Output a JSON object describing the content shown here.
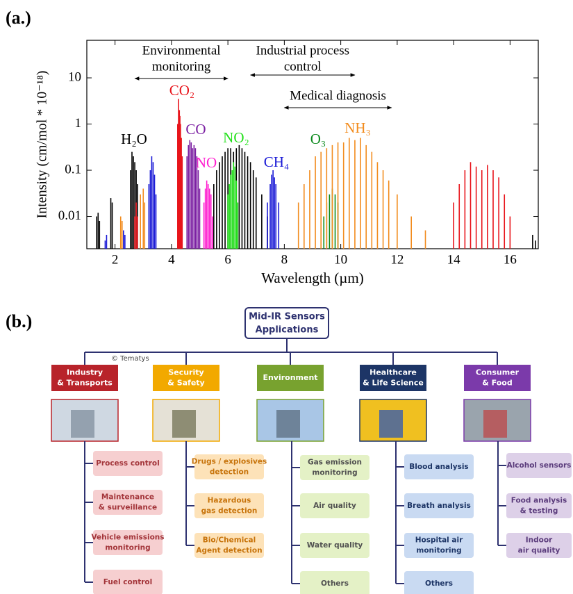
{
  "panel_a_label": "(a.)",
  "panel_b_label": "(b.)",
  "chart_data": {
    "type": "stem",
    "x_label": "Wavelength (µm)",
    "y_label": "Intensity (cm/mol * 10⁻¹⁸)",
    "xlim": [
      1,
      17
    ],
    "xticks": [
      2,
      4,
      6,
      8,
      10,
      12,
      14,
      16
    ],
    "ylim": [
      0.002,
      65
    ],
    "yticks": [
      0.01,
      0.1,
      1,
      10
    ],
    "log_y": true,
    "series": [
      {
        "name": "H₂O",
        "color": "#000000",
        "x": [
          1.35,
          1.4,
          1.45,
          1.85,
          1.9,
          2.55,
          2.6,
          2.65,
          2.7,
          2.75,
          2.8,
          5.5,
          5.6,
          5.7,
          5.8,
          5.9,
          6.0,
          6.1,
          6.2,
          6.3,
          6.4,
          6.5,
          6.6,
          6.7,
          6.8,
          6.9,
          7.0,
          7.2,
          7.4,
          16.8,
          16.9
        ],
        "values": [
          0.01,
          0.012,
          0.008,
          0.025,
          0.02,
          0.1,
          0.25,
          0.2,
          0.15,
          0.1,
          0.05,
          0.05,
          0.1,
          0.15,
          0.2,
          0.25,
          0.3,
          0.3,
          0.25,
          0.3,
          0.35,
          0.3,
          0.25,
          0.2,
          0.15,
          0.1,
          0.07,
          0.03,
          0.01,
          0.004,
          0.003
        ]
      },
      {
        "name": "CO₂",
        "color": "#e8141b",
        "x": [
          2.7,
          2.75,
          2.8,
          4.22,
          4.25,
          4.28,
          4.3,
          4.32,
          4.35,
          4.38,
          14.0,
          14.2,
          14.4,
          14.6,
          14.8,
          15.0,
          15.2,
          15.4,
          15.6,
          15.8,
          16.0
        ],
        "values": [
          0.01,
          0.02,
          0.01,
          1,
          3.5,
          2,
          1.5,
          1,
          0.5,
          0.2,
          0.02,
          0.05,
          0.1,
          0.15,
          0.12,
          0.1,
          0.13,
          0.1,
          0.07,
          0.03,
          0.01
        ]
      },
      {
        "name": "CO",
        "color": "#7b1fa2",
        "x": [
          4.55,
          4.6,
          4.65,
          4.7,
          4.75,
          4.8,
          4.85,
          4.9,
          4.95,
          5.0
        ],
        "values": [
          0.2,
          0.35,
          0.45,
          0.4,
          0.3,
          0.35,
          0.3,
          0.2,
          0.1,
          0.04
        ]
      },
      {
        "name": "NO",
        "color": "#ff1fd0",
        "x": [
          5.15,
          5.2,
          5.25,
          5.3,
          5.35,
          5.4,
          5.45
        ],
        "values": [
          0.02,
          0.04,
          0.06,
          0.05,
          0.04,
          0.03,
          0.01
        ]
      },
      {
        "name": "NO₂",
        "color": "#22e01a",
        "x": [
          6.0,
          6.05,
          6.1,
          6.15,
          6.2,
          6.25,
          6.3,
          6.35
        ],
        "values": [
          0.03,
          0.05,
          0.08,
          0.1,
          0.15,
          0.12,
          0.06,
          0.02
        ]
      },
      {
        "name": "CH₄",
        "color": "#1a1ad6",
        "x": [
          1.65,
          1.7,
          2.3,
          2.35,
          3.2,
          3.25,
          3.3,
          3.35,
          3.4,
          3.45,
          7.4,
          7.5,
          7.55,
          7.6,
          7.65,
          7.7,
          7.8
        ],
        "values": [
          0.003,
          0.004,
          0.005,
          0.004,
          0.05,
          0.1,
          0.2,
          0.15,
          0.08,
          0.03,
          0.02,
          0.05,
          0.08,
          0.1,
          0.07,
          0.05,
          0.02
        ]
      },
      {
        "name": "O₃",
        "color": "#0b8a1c",
        "x": [
          9.4,
          9.5,
          9.6,
          9.7,
          9.8,
          9.9
        ],
        "values": [
          0.01,
          0.02,
          0.03,
          0.04,
          0.03,
          0.02
        ]
      },
      {
        "name": "NH₃",
        "color": "#f28c1e",
        "x": [
          2.2,
          2.25,
          2.9,
          3.0,
          3.05,
          8.5,
          8.7,
          8.9,
          9.1,
          9.3,
          9.5,
          9.7,
          9.9,
          10.1,
          10.3,
          10.5,
          10.7,
          10.9,
          11.1,
          11.3,
          11.5,
          11.7,
          12.0,
          12.5,
          13.0
        ],
        "values": [
          0.01,
          0.008,
          0.03,
          0.04,
          0.02,
          0.02,
          0.05,
          0.1,
          0.2,
          0.25,
          0.3,
          0.35,
          0.4,
          0.4,
          0.5,
          0.45,
          0.5,
          0.35,
          0.25,
          0.15,
          0.1,
          0.06,
          0.03,
          0.01,
          0.005
        ]
      }
    ],
    "annotations": [
      {
        "text": [
          "Environmental",
          "monitoring"
        ],
        "range": [
          2.7,
          6.0
        ]
      },
      {
        "text": [
          "Industrial process",
          "control"
        ],
        "range": [
          6.8,
          10.5
        ]
      },
      {
        "text": [
          "Medical diagnosis"
        ],
        "range": [
          8.0,
          11.8
        ]
      }
    ]
  },
  "diagram": {
    "root": [
      "Mid-IR Sensors",
      "Applications"
    ],
    "credit": "© Tematys",
    "columns": [
      {
        "title": [
          "Industry",
          "& Transports"
        ],
        "color": "#b8232a",
        "item_fill": "#f6cfd0",
        "item_text": "#a3353a",
        "items": [
          [
            "Process control"
          ],
          [
            "Maintenance",
            "& surveillance"
          ],
          [
            "Vehicle emissions",
            "monitoring"
          ],
          [
            "Fuel control"
          ]
        ]
      },
      {
        "title": [
          "Security",
          "& Safety"
        ],
        "color": "#f2a900",
        "item_fill": "#fde2b8",
        "item_text": "#c7730a",
        "items": [
          [
            "Drugs / explosives",
            "detection"
          ],
          [
            "Hazardous",
            "gas detection"
          ],
          [
            "Bio/Chemical",
            "Agent detection"
          ]
        ]
      },
      {
        "title": [
          "Environment"
        ],
        "color": "#78a22f",
        "item_fill": "#e4f1c6",
        "item_text": "#505050",
        "items": [
          [
            "Gas emission",
            "monitoring"
          ],
          [
            "Air quality"
          ],
          [
            "Water quality"
          ],
          [
            "Others"
          ]
        ]
      },
      {
        "title": [
          "Healthcare",
          "& Life Science"
        ],
        "color": "#1d3566",
        "item_fill": "#c9daf2",
        "item_text": "#1d3566",
        "items": [
          [
            "Blood analysis"
          ],
          [
            "Breath analysis"
          ],
          [
            "Hospital air",
            "monitoring"
          ],
          [
            "Others"
          ]
        ]
      },
      {
        "title": [
          "Consumer",
          "& Food"
        ],
        "color": "#7b3aaa",
        "item_fill": "#ddd0e8",
        "item_text": "#5b3c7c",
        "items": [
          [
            "Alcohol sensors"
          ],
          [
            "Food analysis",
            "& testing"
          ],
          [
            "Indoor",
            "air quality"
          ]
        ]
      }
    ]
  }
}
